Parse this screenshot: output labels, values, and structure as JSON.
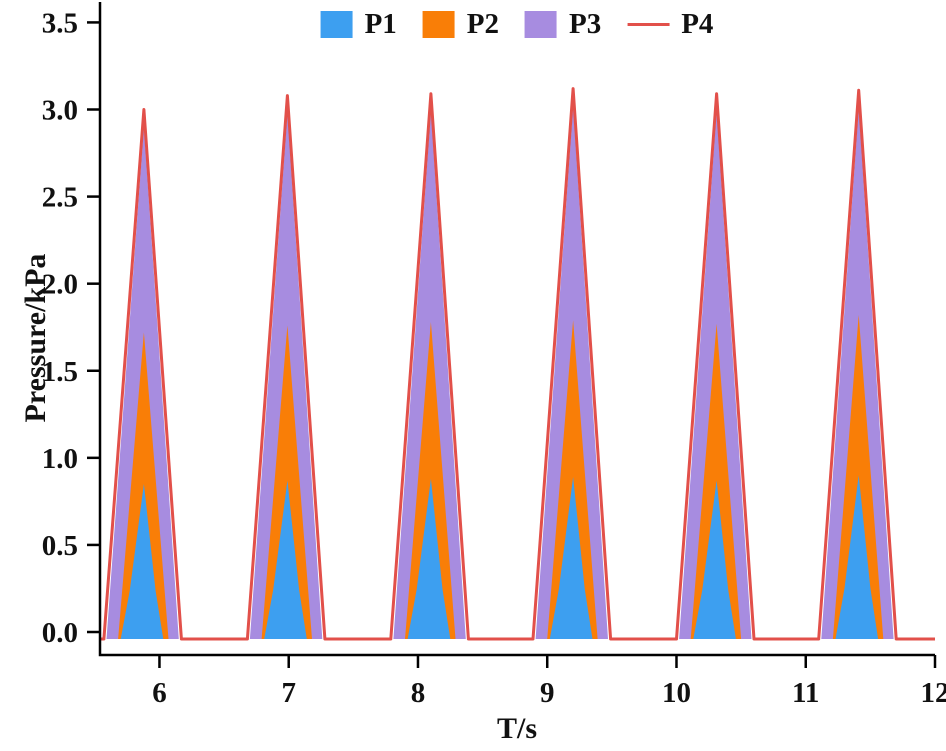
{
  "chart_data": {
    "type": "area",
    "title": "",
    "xlabel": "T/s",
    "ylabel": "Pressure/kPa",
    "xlim": [
      5.54,
      12.0
    ],
    "ylim": [
      -0.132,
      3.6
    ],
    "x_ticks": [
      6,
      7,
      8,
      9,
      10,
      11,
      12
    ],
    "x_tick_labels": [
      "6",
      "7",
      "8",
      "9",
      "10",
      "11",
      "12"
    ],
    "y_ticks": [
      0.0,
      0.5,
      1.0,
      1.5,
      2.0,
      2.5,
      3.0,
      3.5
    ],
    "y_tick_labels": [
      "0.0",
      "0.5",
      "1.0",
      "1.5",
      "2.0",
      "2.5",
      "3.0",
      "3.5"
    ],
    "grid": false,
    "legend_position": "top-center",
    "baseline": -0.04,
    "peak_times": [
      5.9,
      7.01,
      8.12,
      9.22,
      10.33,
      11.43
    ],
    "draw_order": [
      "P3",
      "P2",
      "P1",
      "P4"
    ],
    "series": [
      {
        "name": "P1",
        "color": "#3d9ff0",
        "style": "fill",
        "peaks": [
          0.85,
          0.87,
          0.88,
          0.89,
          0.87,
          0.9
        ],
        "shape": [
          [
            -0.2,
            0
          ],
          [
            -0.13,
            0.31
          ],
          [
            -0.02,
            1
          ],
          [
            0.07,
            0.31
          ],
          [
            0.13,
            0
          ]
        ]
      },
      {
        "name": "P2",
        "color": "#f97e07",
        "style": "fill",
        "peaks": [
          1.72,
          1.76,
          1.78,
          1.79,
          1.77,
          1.82
        ],
        "shape": [
          [
            -0.22,
            0
          ],
          [
            -0.02,
            1
          ],
          [
            0.17,
            0
          ]
        ]
      },
      {
        "name": "P3",
        "color": "#a78ce0",
        "style": "fill",
        "peaks": [
          2.9,
          2.98,
          2.99,
          3.02,
          2.99,
          3.01
        ],
        "shape": [
          [
            -0.31,
            0
          ],
          [
            -0.02,
            1
          ],
          [
            0.25,
            0
          ]
        ]
      },
      {
        "name": "P4",
        "color": "#e2504a",
        "style": "line",
        "peaks": [
          3.0,
          3.08,
          3.09,
          3.12,
          3.09,
          3.11
        ],
        "shape": [
          [
            -0.33,
            0
          ],
          [
            -0.02,
            1
          ],
          [
            0.27,
            0
          ]
        ]
      }
    ]
  }
}
